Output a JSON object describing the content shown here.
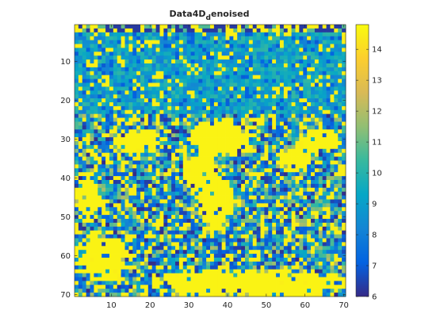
{
  "chart_data": {
    "type": "heatmap",
    "title": "Data4D_denoised",
    "title_main": "Data4D",
    "title_sub": "d",
    "title_rest": "enoised",
    "xlabel": "",
    "ylabel": "",
    "grid": false,
    "colormap": "parula",
    "x_range": [
      1,
      70
    ],
    "y_range": [
      1,
      70
    ],
    "y_reversed": true,
    "x_ticks": [
      "10",
      "20",
      "30",
      "40",
      "50",
      "60",
      "70"
    ],
    "y_ticks": [
      "10",
      "20",
      "30",
      "40",
      "50",
      "60",
      "70"
    ],
    "colorbar": {
      "clim": [
        6,
        14.8
      ],
      "ticks": [
        "6",
        "7",
        "8",
        "9",
        "10",
        "11",
        "12",
        "13",
        "14"
      ]
    },
    "grid_size": [
      70,
      70
    ]
  }
}
